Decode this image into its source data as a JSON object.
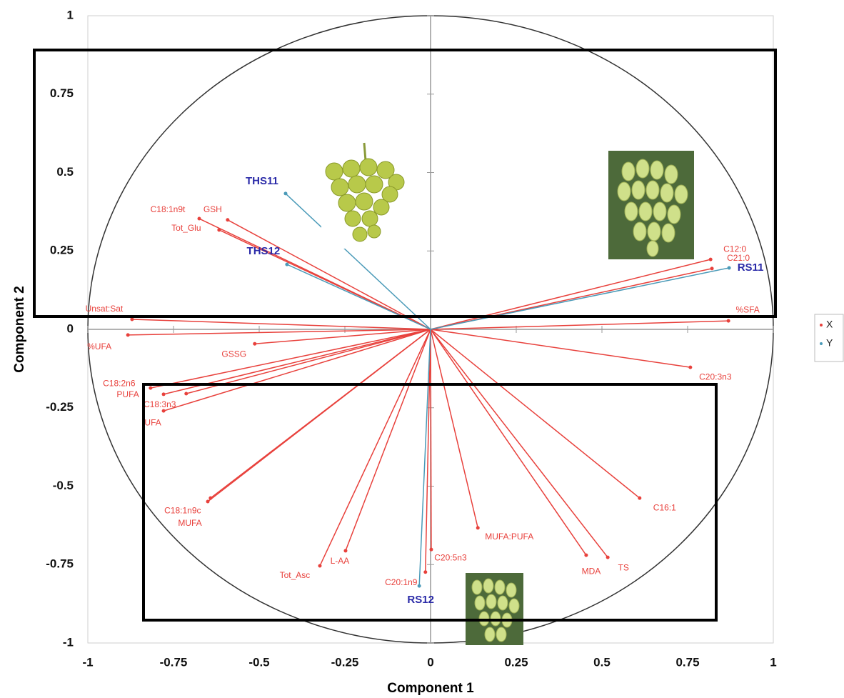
{
  "chart_data": {
    "type": "vector",
    "xlabel": "Component 1",
    "ylabel": "Component 2",
    "xlim": [
      -1,
      1
    ],
    "ylim": [
      -1,
      1
    ],
    "xticks": [
      -1,
      -0.75,
      -0.5,
      -0.25,
      0,
      0.25,
      0.5,
      0.75,
      1
    ],
    "yticks": [
      -1,
      -0.75,
      -0.5,
      -0.25,
      0,
      0.25,
      0.5,
      0.75,
      1
    ],
    "series": [
      {
        "name": "X",
        "color": "#e8413c",
        "label_color": "#e8413c",
        "labels": [
          "C12:0",
          "C21:0",
          "%SFA",
          "Unsat:Sat",
          "%UFA",
          "GSSG",
          "C18:2n6",
          "PUFA",
          "C18:3n3",
          "UFA",
          "C18:1n9c",
          "MUFA",
          "Tot_Asc",
          "L-AA",
          "C20:1n9",
          "C20:5n3",
          "MUFA:PUFA",
          "MDA",
          "TS",
          "C16:1",
          "C20:3n3",
          "C18:1n9t",
          "GSH",
          "Tot_Glu"
        ],
        "x": [
          0.817,
          0.821,
          0.869,
          -0.871,
          -0.883,
          -0.513,
          -0.817,
          -0.779,
          -0.713,
          -0.779,
          -0.642,
          -0.65,
          -0.323,
          -0.248,
          -0.015,
          0.002,
          0.138,
          0.454,
          0.517,
          0.61,
          0.758,
          -0.675,
          -0.592,
          -0.617
        ],
        "y": [
          0.223,
          0.194,
          0.027,
          0.032,
          -0.018,
          -0.046,
          -0.187,
          -0.207,
          -0.205,
          -0.26,
          -0.538,
          -0.549,
          -0.754,
          -0.706,
          -0.774,
          -0.702,
          -0.633,
          -0.72,
          -0.727,
          -0.538,
          -0.121,
          0.353,
          0.349,
          0.317
        ]
      },
      {
        "name": "Y",
        "color": "#4a9ab8",
        "label_color": "#2a2aa8",
        "labels": [
          "THS11",
          "THS12",
          "RS11",
          "RS12"
        ],
        "x": [
          -0.423,
          -0.419,
          0.871,
          -0.033
        ],
        "y": [
          0.433,
          0.207,
          0.196,
          -0.818
        ]
      }
    ]
  }
}
